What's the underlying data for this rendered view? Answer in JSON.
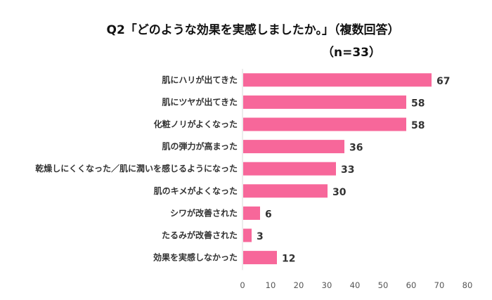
{
  "chart_data": {
    "type": "bar",
    "orientation": "horizontal",
    "title": "Q2「どのような効果を実感しましたか。」（複数回答）",
    "subtitle": "（n=33）",
    "categories": [
      "肌にハリが出てきた",
      "肌にツヤが出てきた",
      "化粧ノリがよくなった",
      "肌の弾力が高まった",
      "乾燥しにくくなった／肌に潤いを感じるようになった",
      "肌のキメがよくなった",
      "シワが改善された",
      "たるみが改善された",
      "効果を実感しなかった"
    ],
    "values": [
      67,
      58,
      58,
      36,
      33,
      30,
      6,
      3,
      12
    ],
    "xlim": [
      0,
      80
    ],
    "xticks": [
      0,
      10,
      20,
      30,
      40,
      50,
      60,
      70,
      80
    ],
    "xlabel": "",
    "ylabel": "",
    "grid": false,
    "data_labels": true,
    "bar_color": "#F7679A"
  }
}
